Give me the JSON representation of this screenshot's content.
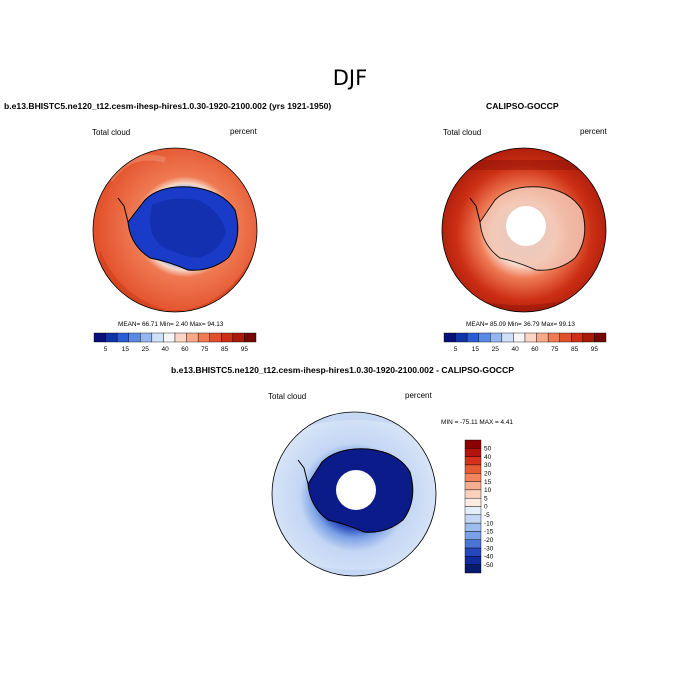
{
  "title": "DJF",
  "panels": [
    {
      "id": "model",
      "title": "b.e13.BHISTC5.ne120_t12.cesm-ihesp-hires1.0.30-1920-2100.002 (yrs 1921-1950)",
      "left_label": "Total cloud",
      "right_label": "percent",
      "stats": "MEAN=  66.71  Min=   2.40  Max=  94.13",
      "stats_values": {
        "mean": 66.71,
        "min": 2.4,
        "max": 94.13
      }
    },
    {
      "id": "obs",
      "title": "CALIPSO-GOCCP",
      "left_label": "Total cloud",
      "right_label": "percent",
      "stats": "MEAN=  85.09  Min=  36.79  Max=  99.13",
      "stats_values": {
        "mean": 85.09,
        "min": 36.79,
        "max": 99.13
      }
    },
    {
      "id": "diff",
      "title": "b.e13.BHISTC5.ne120_t12.cesm-ihesp-hires1.0.30-1920-2100.002 - CALIPSO-GOCCP",
      "left_label": "Total cloud",
      "right_label": "percent",
      "stats": "MIN = -75.11 MAX =   4.41",
      "stats_values": {
        "min": -75.11,
        "max": 4.41
      }
    }
  ],
  "abs_colorbar": {
    "labels": [
      "5",
      "15",
      "25",
      "40",
      "60",
      "75",
      "85",
      "95"
    ],
    "colors": [
      "#08107a",
      "#0f33a8",
      "#2a5cd6",
      "#5b8ae6",
      "#95b6f0",
      "#cfe0f7",
      "#f5f5f5",
      "#fbd6c4",
      "#f7a98a",
      "#ef7b55",
      "#e2502b",
      "#cc2f14",
      "#a81a0a",
      "#760804"
    ]
  },
  "diff_colorbar": {
    "labels": [
      "50",
      "40",
      "30",
      "20",
      "15",
      "10",
      "5",
      "0",
      "-5",
      "-10",
      "-15",
      "-20",
      "-30",
      "-40",
      "-50"
    ],
    "colors": [
      "#8b0000",
      "#b3130c",
      "#d4321a",
      "#e85a33",
      "#f2855f",
      "#f7ad8f",
      "#fbd0bd",
      "#fdebe1",
      "#e6eefa",
      "#c3d6f4",
      "#9dbcee",
      "#7aa1e6",
      "#4b74d6",
      "#2547bd",
      "#102b9e",
      "#071a6e"
    ]
  }
}
